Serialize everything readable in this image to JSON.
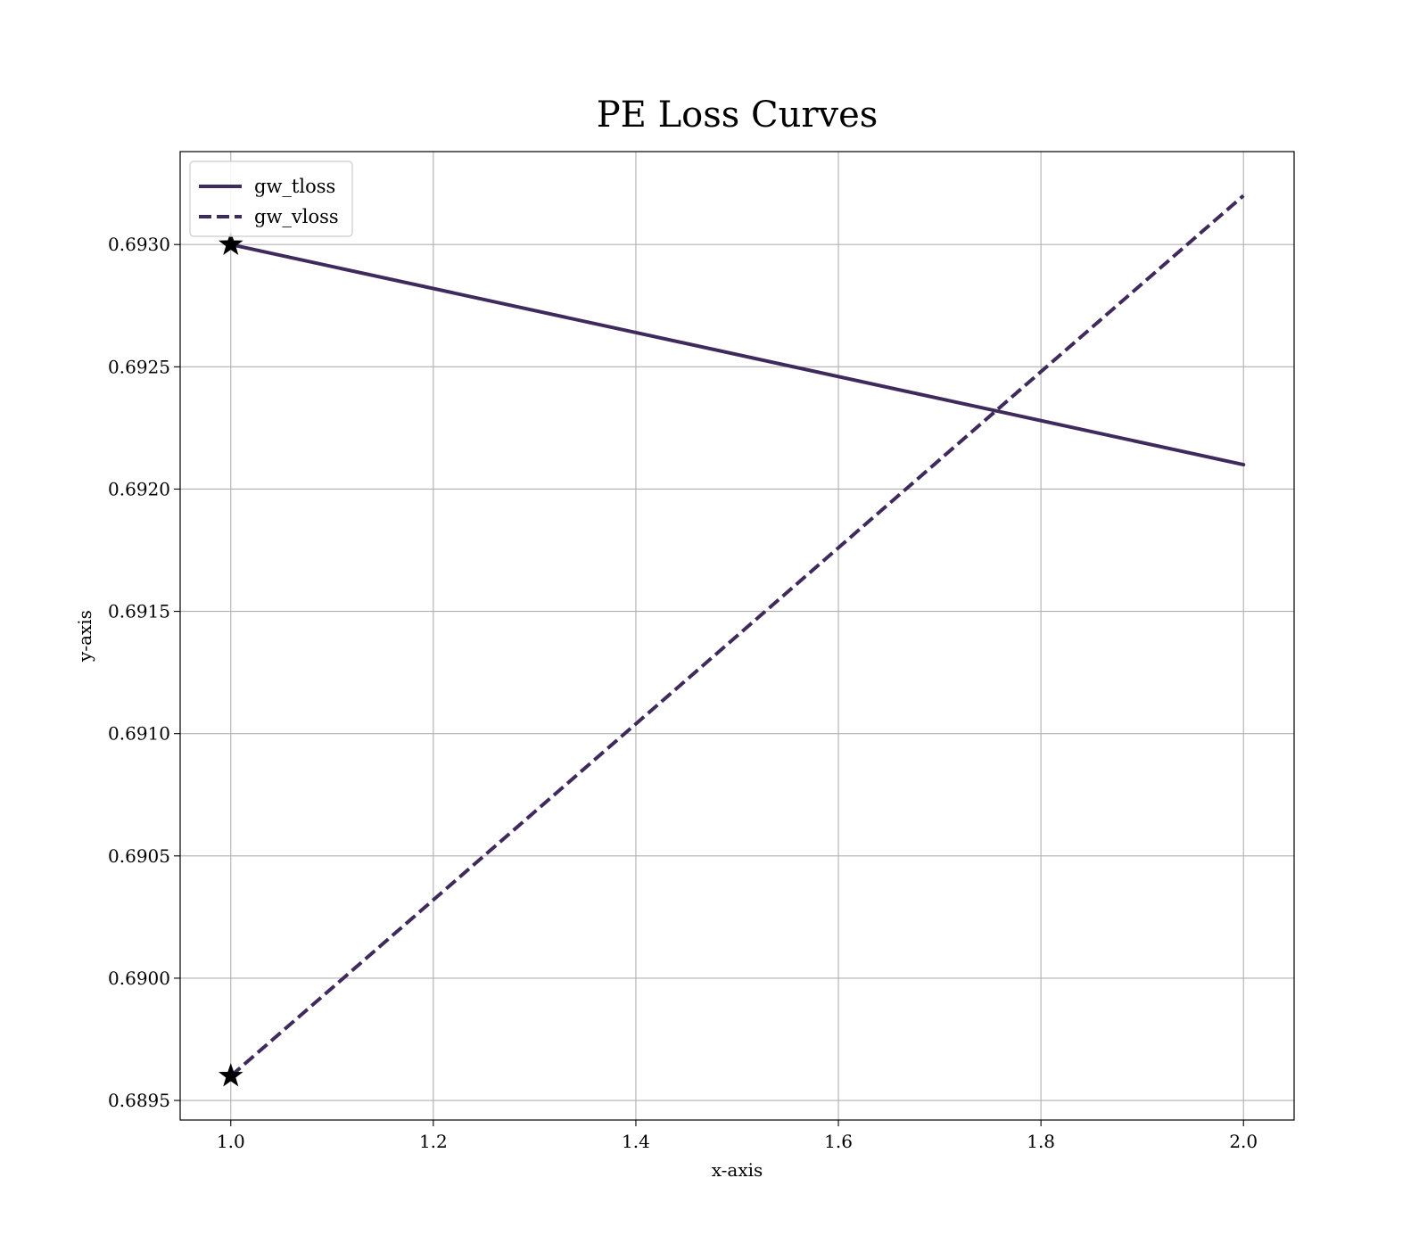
{
  "chart_data": {
    "type": "line",
    "title": "PE Loss Curves",
    "xlabel": "x-axis",
    "ylabel": "y-axis",
    "xlim": [
      0.95,
      2.05
    ],
    "ylim": [
      0.68942,
      0.69338
    ],
    "x_ticks": [
      1.0,
      1.2,
      1.4,
      1.6,
      1.8,
      2.0
    ],
    "x_tick_labels": [
      "1.0",
      "1.2",
      "1.4",
      "1.6",
      "1.8",
      "2.0"
    ],
    "y_ticks": [
      0.6895,
      0.69,
      0.6905,
      0.691,
      0.6915,
      0.692,
      0.6925,
      0.693
    ],
    "y_tick_labels": [
      "0.6895",
      "0.6900",
      "0.6905",
      "0.6910",
      "0.6915",
      "0.6920",
      "0.6925",
      "0.6930"
    ],
    "grid": true,
    "legend_position": "upper-left",
    "series": [
      {
        "name": "gw_tloss",
        "x": [
          1,
          2
        ],
        "y": [
          0.693,
          0.6921
        ],
        "line_style": "solid",
        "color": "#3f2a5c",
        "best_marker": {
          "x": 1,
          "y": 0.693,
          "symbol": "star"
        }
      },
      {
        "name": "gw_vloss",
        "x": [
          1,
          2
        ],
        "y": [
          0.6896,
          0.6932
        ],
        "line_style": "dashed",
        "color": "#3f2a5c",
        "best_marker": {
          "x": 1,
          "y": 0.6896,
          "symbol": "star"
        }
      }
    ]
  }
}
